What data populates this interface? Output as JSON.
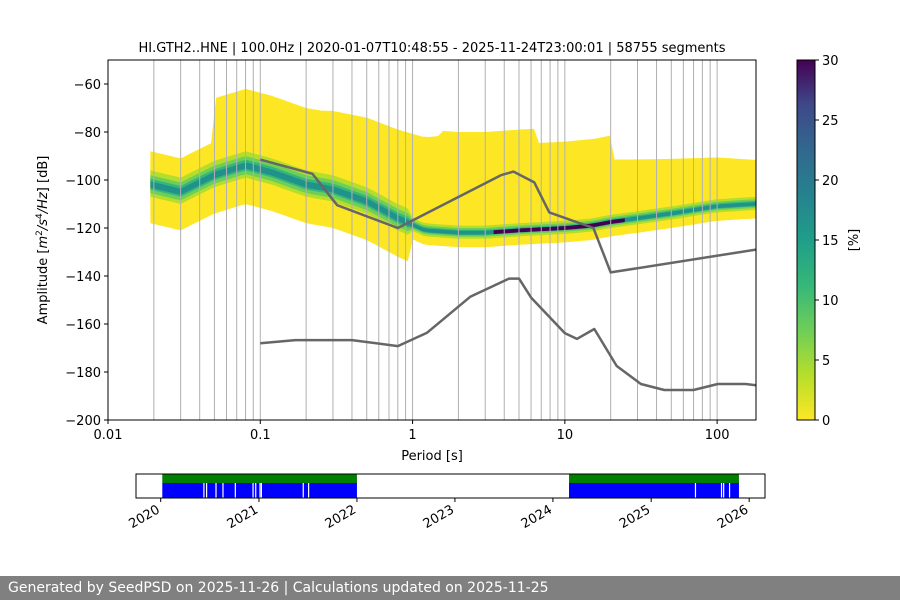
{
  "chart_data": [
    {
      "type": "heatmap",
      "title": "HI.GTH2..HNE | 100.0Hz | 2020-01-07T10:48:55 - 2025-11-24T23:00:01 | 58755 segments",
      "xlabel": "Period [s]",
      "ylabel_parts": [
        "Amplitude [",
        "m",
        "2",
        "/",
        "s",
        "4",
        "/",
        "Hz",
        "] [dB]"
      ],
      "xscale": "log",
      "xlim": [
        0.01,
        180
      ],
      "ylim": [
        -200,
        -50
      ],
      "xticks": [
        {
          "value": 0.01,
          "label": "0.01"
        },
        {
          "value": 0.1,
          "label": "0.1"
        },
        {
          "value": 1,
          "label": "1"
        },
        {
          "value": 10,
          "label": "10"
        },
        {
          "value": 100,
          "label": "100"
        }
      ],
      "yticks": [
        {
          "value": -60,
          "label": "−60"
        },
        {
          "value": -80,
          "label": "−80"
        },
        {
          "value": -100,
          "label": "−100"
        },
        {
          "value": -120,
          "label": "−120"
        },
        {
          "value": -140,
          "label": "−140"
        },
        {
          "value": -160,
          "label": "−160"
        },
        {
          "value": -180,
          "label": "−180"
        },
        {
          "value": -200,
          "label": "−200"
        }
      ],
      "grid": true,
      "period_gridlines": [
        0.02,
        0.03,
        0.04,
        0.05,
        0.06,
        0.07,
        0.08,
        0.09,
        0.1,
        0.2,
        0.3,
        0.4,
        0.5,
        0.6,
        0.7,
        0.8,
        0.9,
        1,
        2,
        3,
        4,
        5,
        6,
        7,
        8,
        9,
        10,
        20,
        30,
        40,
        50,
        60,
        70,
        80,
        90,
        100
      ],
      "density_ridge": {
        "period": [
          0.019,
          0.03,
          0.05,
          0.08,
          0.12,
          0.2,
          0.3,
          0.5,
          0.8,
          1.2,
          2,
          3,
          5,
          10,
          15,
          20,
          30,
          50,
          100,
          180
        ],
        "amplitude_db": [
          -102,
          -105,
          -98,
          -94,
          -97,
          -102,
          -104,
          -109,
          -116,
          -121,
          -122,
          -122,
          -121,
          -120,
          -119,
          -117.5,
          -116,
          -114,
          -111,
          -110
        ]
      },
      "peterson_nhnm": {
        "period": [
          0.1,
          0.22,
          0.32,
          0.8,
          3.8,
          4.6,
          6.3,
          7.9,
          15.4,
          20,
          180
        ],
        "amplitude_db": [
          -91.5,
          -97.4,
          -110.5,
          -120,
          -98,
          -96.5,
          -101,
          -113.5,
          -120,
          -138.5,
          -129
        ]
      },
      "peterson_nlnm": {
        "period": [
          0.1,
          0.17,
          0.4,
          0.8,
          1.24,
          2.4,
          4.3,
          5,
          6,
          10,
          12,
          15.6,
          21.9,
          31.6,
          45,
          70,
          101,
          154,
          180
        ],
        "amplitude_db": [
          -168,
          -166.7,
          -166.7,
          -169.2,
          -163.7,
          -148.6,
          -141.1,
          -141.1,
          -149,
          -163.8,
          -166.2,
          -162.1,
          -177.5,
          -185,
          -187.5,
          -187.5,
          -185,
          -185,
          -185.5
        ]
      },
      "colorbar": {
        "label": "[%]",
        "range": [
          0,
          30
        ],
        "ticks": [
          {
            "value": 0,
            "label": "0"
          },
          {
            "value": 5,
            "label": "5"
          },
          {
            "value": 10,
            "label": "10"
          },
          {
            "value": 15,
            "label": "15"
          },
          {
            "value": 20,
            "label": "20"
          },
          {
            "value": 25,
            "label": "25"
          },
          {
            "value": 30,
            "label": "30"
          }
        ],
        "colormap": "viridis-reversed"
      },
      "colors": {
        "low": "#fde725",
        "mid": "#21918c",
        "high": "#440154",
        "noise_model": "#666666",
        "grid": "#b0b0b0"
      }
    },
    {
      "type": "timeline",
      "xlim": [
        "2019-10-01",
        "2026-03-01"
      ],
      "xticks": [
        {
          "date": "2020-01-01",
          "label": "2020"
        },
        {
          "date": "2021-01-01",
          "label": "2021"
        },
        {
          "date": "2022-01-01",
          "label": "2022"
        },
        {
          "date": "2023-01-01",
          "label": "2023"
        },
        {
          "date": "2024-01-01",
          "label": "2024"
        },
        {
          "date": "2025-01-01",
          "label": "2025"
        },
        {
          "date": "2026-01-01",
          "label": "2026"
        }
      ],
      "data_availability": [
        {
          "start": "2020-01-07",
          "end": "2022-01-01"
        },
        {
          "start": "2024-03-01",
          "end": "2025-11-24"
        }
      ],
      "gaps": [
        "2020-06-10",
        "2020-06-20",
        "2020-07-25",
        "2020-08-20",
        "2020-10-05",
        "2020-12-10",
        "2020-12-20",
        "2021-01-05",
        "2021-01-10",
        "2021-06-15",
        "2021-07-05",
        "2025-06-15",
        "2025-09-20",
        "2025-09-28",
        "2025-10-20"
      ],
      "colors": {
        "data": "#0000ff",
        "psd": "#008000"
      }
    }
  ],
  "footer": {
    "text": "Generated by SeedPSD on 2025-11-26 | Calculations updated on 2025-11-25"
  }
}
